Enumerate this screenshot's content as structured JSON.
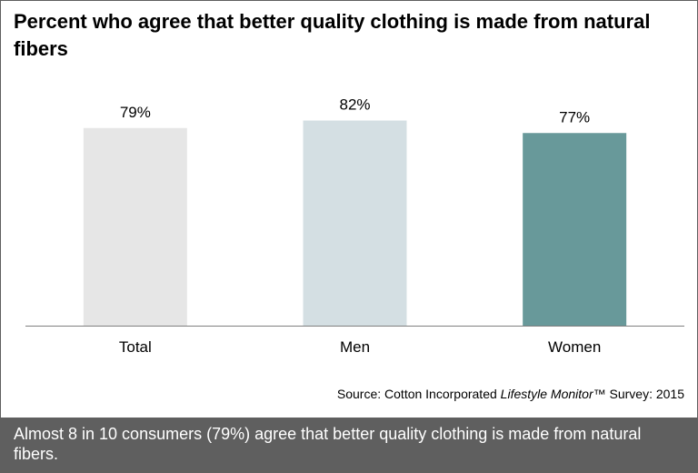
{
  "title": "Percent who agree that better quality clothing is made from natural fibers",
  "source": {
    "prefix": "Source: Cotton Incorporated ",
    "italic": "Lifestyle Monitor",
    "suffix": "™ Survey: 2015"
  },
  "caption": "Almost 8 in 10 consumers (79%) agree that better quality clothing is made from natural fibers.",
  "chart_data": {
    "type": "bar",
    "title": "Percent who agree that better quality clothing is made from natural fibers",
    "categories": [
      "Total",
      "Men",
      "Women"
    ],
    "values": [
      79,
      82,
      77
    ],
    "data_labels": [
      "79%",
      "82%",
      "77%"
    ],
    "colors": [
      "#e6e6e6",
      "#d4dfe3",
      "#68999a"
    ],
    "xlabel": "",
    "ylabel": "",
    "ylim": [
      0,
      100
    ],
    "grid": false,
    "legend": "none"
  }
}
